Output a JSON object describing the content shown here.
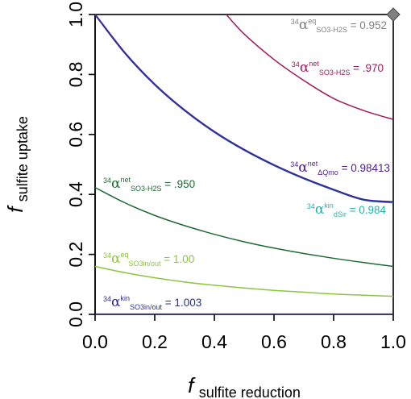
{
  "chart_data": {
    "type": "line",
    "xlabel": {
      "italic": "f",
      "sub": "sulfite reduction"
    },
    "ylabel": {
      "italic": "f",
      "sub": "sulfite uptake"
    },
    "xlim": [
      0,
      1
    ],
    "ylim": [
      0,
      1
    ],
    "x_ticks": [
      "0.0",
      "0.2",
      "0.4",
      "0.6",
      "0.8",
      "1.0"
    ],
    "y_ticks": [
      "0.0",
      "0.2",
      "0.4",
      "0.6",
      "0.8",
      "1.0"
    ],
    "grid": false,
    "series": [
      {
        "name": "34αkin SO3in/out = 1.003",
        "color": "#2b2f8f",
        "x": [
          0,
          0.2,
          0.4,
          0.6,
          0.8,
          1.0
        ],
        "y": [
          0.001,
          0.001,
          0.001,
          0.001,
          0.001,
          0.001
        ]
      },
      {
        "name": "34αeq SO3in/out = 1.00",
        "color": "#8cc63f",
        "x": [
          0,
          0.1,
          0.2,
          0.3,
          0.4,
          0.5,
          0.6,
          0.7,
          0.8,
          0.9,
          1.0
        ],
        "y": [
          0.16,
          0.139,
          0.122,
          0.108,
          0.097,
          0.088,
          0.08,
          0.074,
          0.068,
          0.064,
          0.06
        ]
      },
      {
        "name": "34αnet SO3-H2S = .950",
        "color": "#1f6a32",
        "x": [
          0,
          0.1,
          0.2,
          0.3,
          0.4,
          0.5,
          0.6,
          0.7,
          0.8,
          0.9,
          1.0
        ],
        "y": [
          0.423,
          0.372,
          0.33,
          0.296,
          0.267,
          0.242,
          0.221,
          0.203,
          0.187,
          0.173,
          0.16
        ]
      },
      {
        "name": "34αkin dSir = 0.984",
        "color": "#26b3a8",
        "x": [
          0,
          0.1,
          0.2,
          0.3,
          0.4,
          0.5,
          0.6,
          0.7,
          0.8,
          0.9,
          1.0
        ],
        "y": [
          1.0,
          0.87,
          0.765,
          0.679,
          0.607,
          0.547,
          0.496,
          0.452,
          0.414,
          0.381,
          0.372
        ]
      },
      {
        "name": "34αnet ΔQmo = 0.98413",
        "color": "#3a2a9a",
        "x": [
          0,
          0.1,
          0.2,
          0.3,
          0.4,
          0.5,
          0.6,
          0.7,
          0.8,
          0.9,
          1.0
        ],
        "y": [
          1.0,
          0.872,
          0.767,
          0.681,
          0.609,
          0.549,
          0.498,
          0.454,
          0.416,
          0.383,
          0.375
        ]
      },
      {
        "name": "34αnet SO3-H2S = .970",
        "color": "#a3195b",
        "x": [
          0.44,
          0.5,
          0.6,
          0.7,
          0.8,
          0.9,
          1.0
        ],
        "y": [
          1.0,
          0.935,
          0.85,
          0.78,
          0.72,
          0.68,
          0.65
        ]
      }
    ],
    "markers": [
      {
        "name": "34αeq SO3-H2S = 0.952",
        "color": "#808080",
        "shape": "diamond",
        "x": 1.0,
        "y": 1.0
      }
    ],
    "annotations": [
      {
        "sup": "34",
        "alpha": "α",
        "alpha_sup": "eq",
        "sub": "SO3-H2S",
        "value": " = 0.952",
        "color": "#808080"
      },
      {
        "sup": "34",
        "alpha": "α",
        "alpha_sup": "net",
        "sub": "SO3-H2S",
        "value": " = .970",
        "color": "#a3195b"
      },
      {
        "sup": "34",
        "alpha": "α",
        "alpha_sup": "net",
        "sub": "ΔQmo",
        "value": " = 0.98413",
        "color": "#4b1f8f"
      },
      {
        "sup": "34",
        "alpha": "α",
        "alpha_sup": "kin",
        "sub": "dSir",
        "value": " = 0.984",
        "color": "#26b3a8"
      },
      {
        "sup": "34",
        "alpha": "α",
        "alpha_sup": "net",
        "sub": "SO3-H2S",
        "value": " = .950",
        "color": "#1f6a32"
      },
      {
        "sup": "34",
        "alpha": "α",
        "alpha_sup": "eq",
        "sub": "SO3in/out",
        "value": " = 1.00",
        "color": "#8cc63f"
      },
      {
        "sup": "34",
        "alpha": "α",
        "alpha_sup": "kin",
        "sub": "SO3in/out",
        "value": " = 1.003",
        "color": "#2b2f8f"
      }
    ]
  }
}
